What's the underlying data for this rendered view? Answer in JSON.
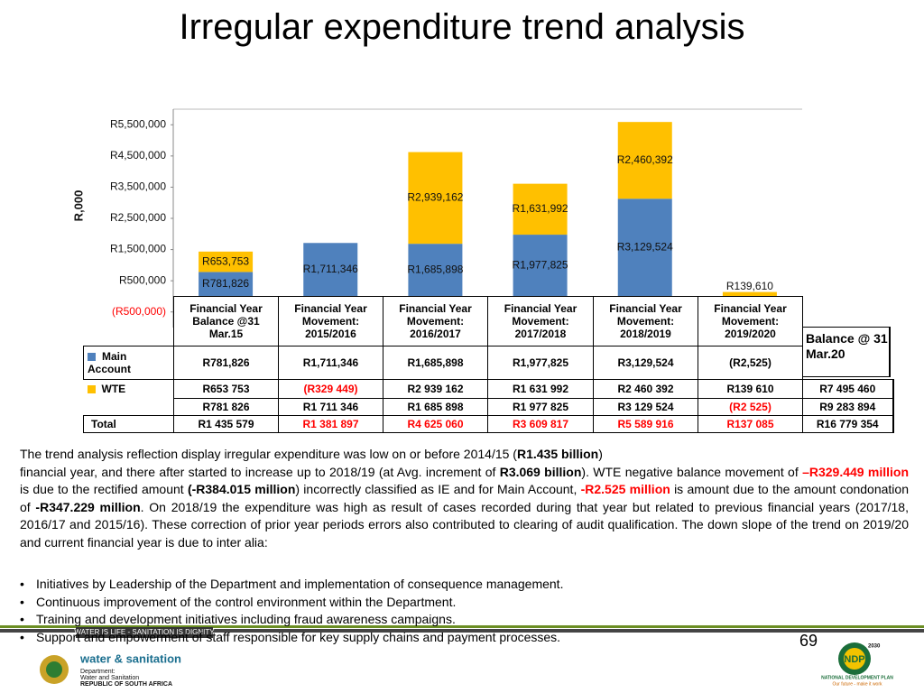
{
  "title": "Irregular expenditure trend analysis",
  "chart_data": {
    "type": "bar",
    "stacked": true,
    "y_label": "R,000",
    "categories": [
      "Financial Year Balance @31 Mar.15",
      "Financial Year Movement: 2015/2016",
      "Financial Year Movement: 2016/2017",
      "Financial Year Movement: 2017/2018",
      "Financial Year Movement: 2018/2019",
      "Financial Year Movement: 2019/2020"
    ],
    "series": [
      {
        "name": "Main Account",
        "color": "#4f81bd",
        "values": [
          781826,
          1711346,
          1685898,
          1977825,
          3129524,
          -2525
        ],
        "value_labels": [
          "R781,826",
          "R1,711,346",
          "R1,685,898",
          "R1,977,825",
          "R3,129,524",
          "(R2,525)"
        ]
      },
      {
        "name": "WTE",
        "color": "#ffc000",
        "values": [
          653753,
          -329449,
          2939162,
          1631992,
          2460392,
          139610
        ],
        "value_labels": [
          "R653,753",
          "(R329,449)",
          "R2,939,162",
          "R1,631,992",
          "R2,460,392",
          "R139,610"
        ]
      }
    ],
    "ylim": [
      -1000000,
      6000000
    ],
    "yticks": [
      {
        "value": -500000,
        "label": "(R500,000)"
      },
      {
        "value": 500000,
        "label": "R500,000"
      },
      {
        "value": 1500000,
        "label": "R1,500,000"
      },
      {
        "value": 2500000,
        "label": "R2,500,000"
      },
      {
        "value": 3500000,
        "label": "R3,500,000"
      },
      {
        "value": 4500000,
        "label": "R4,500,000"
      },
      {
        "value": 5500000,
        "label": "R5,500,000"
      }
    ],
    "negative_tick_color": "#ff0000",
    "grid": false
  },
  "data_table": {
    "balance_header": "Balance @ 31 Mar.20",
    "total_label": "Total",
    "rows": [
      {
        "cells": [
          "R653 753",
          {
            "text": "(R329 449)",
            "color": "#ff0000"
          },
          "R2 939 162",
          "R1 631 992",
          "R2 460 392",
          "R139 610"
        ],
        "balance": "R7 495 460"
      },
      {
        "cells": [
          "R781 826",
          "R1 711 346",
          "R1 685 898",
          "R1 977 825",
          "R3 129 524",
          {
            "text": "(R2 525)",
            "color": "#ff0000"
          }
        ],
        "balance": "R9 283 894"
      },
      {
        "cells": [
          "R1 435 579",
          {
            "text": "R1 381 897",
            "color": "#ff0000"
          },
          {
            "text": "R4 625 060",
            "color": "#ff0000"
          },
          {
            "text": "R3 609 817",
            "color": "#ff0000"
          },
          {
            "text": "R5 589 916",
            "color": "#ff0000"
          },
          {
            "text": "R137 085",
            "color": "#ff0000"
          }
        ],
        "balance": "R16 779 354"
      }
    ]
  },
  "body": {
    "paragraph": [
      {
        "text": "The trend analysis reflection display irregular expenditure was low on or before 2014/15 ("
      },
      {
        "text": "R1.435 billion",
        "bold": true
      },
      {
        "text": ")\n financial year, and there after started to increase up to 2018/19 (at Avg. increment of "
      },
      {
        "text": "R3.069 billion",
        "bold": true
      },
      {
        "text": "). WTE negative balance movement of "
      },
      {
        "text": "–R329.449 million",
        "bold": true,
        "color": "#ff0000"
      },
      {
        "text": " is due to the rectified amount "
      },
      {
        "text": "(-R384.015 million",
        "bold": true
      },
      {
        "text": ") incorrectly classified as IE and for Main Account, "
      },
      {
        "text": "-R2.525 million",
        "bold": true,
        "color": "#ff0000"
      },
      {
        "text": " is amount due to the amount condonation of "
      },
      {
        "text": "-R347.229 million",
        "bold": true
      },
      {
        "text": ". On 2018/19 the expenditure was high as result of cases recorded during that year but related to previous financial years (2017/18, 2016/17 and 2015/16). These correction of prior year periods errors also contributed to clearing of audit qualification. The down slope of the trend on 2019/20 and current financial year is due to inter alia:"
      }
    ],
    "bullets": [
      "Initiatives by  Leadership of the Department and implementation of consequence management.",
      "Continuous improvement of the control environment within the Department.",
      "Training and development initiatives including fraud awareness campaigns.",
      "Support and empowerment of staff responsible for key supply chains and payment processes."
    ]
  },
  "footer": {
    "slogan": "WATER IS LIFE - SANITATION IS DIGNITY",
    "brand": "water & sanitation",
    "department": [
      "Department:",
      "Water and Sanitation",
      "REPUBLIC OF SOUTH AFRICA"
    ],
    "page_number": "69",
    "ndp_year": "2030",
    "ndp": "NDP",
    "ndp_name": "NATIONAL DEVELOPMENT PLAN",
    "ndp_tagline": "Our future - make it work"
  }
}
